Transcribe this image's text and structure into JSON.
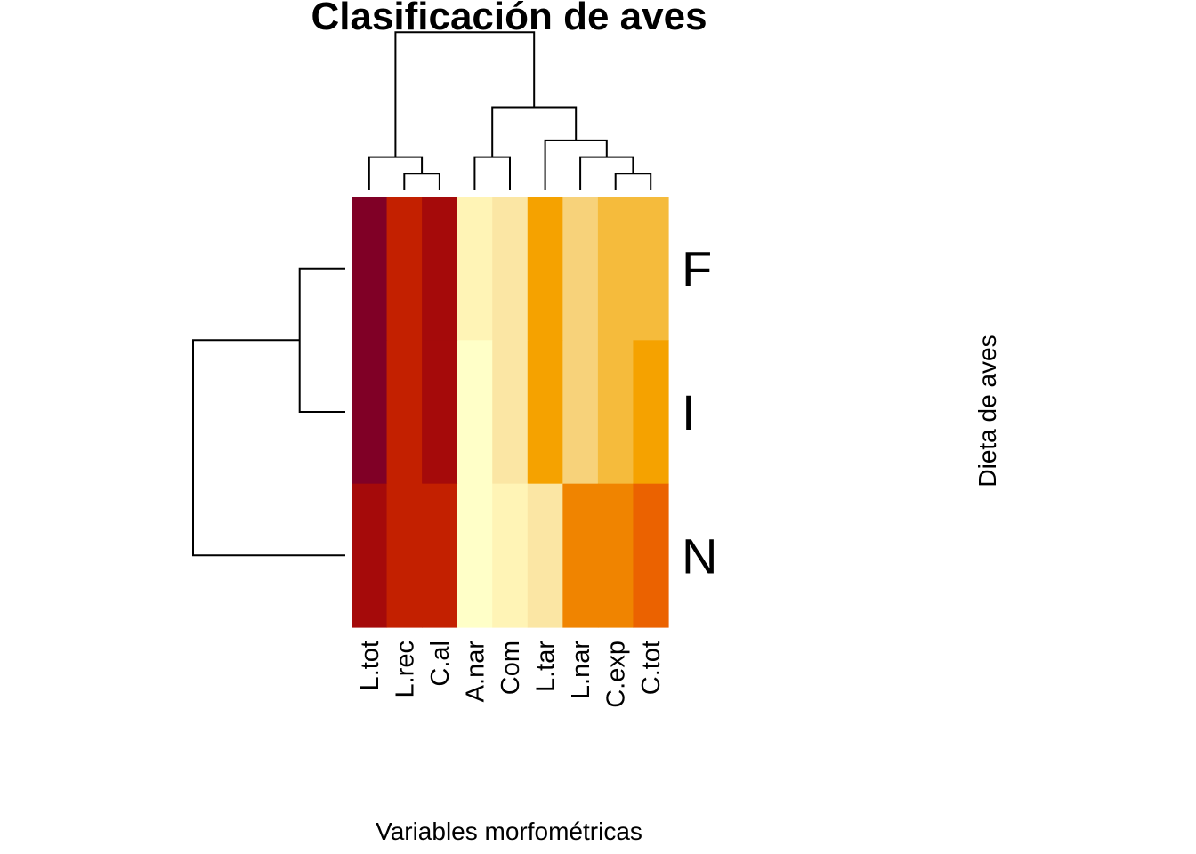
{
  "chart_data": {
    "type": "heatmap",
    "title": "Clasificación de aves",
    "xlabel": "Variables morfométricas",
    "ylabel": "Dieta de aves",
    "columns": [
      "L.tot",
      "L.rec",
      "C.al",
      "A.nar",
      "Com",
      "L.tar",
      "L.nar",
      "C.exp",
      "C.tot"
    ],
    "rows": [
      "F",
      "I",
      "N"
    ],
    "color_scale": [
      "#800026",
      "#A50A0A",
      "#C32000",
      "#EB6200",
      "#F08400",
      "#F5A200",
      "#F5BB3C",
      "#F7D27A",
      "#FBE6A4",
      "#FFF4B6",
      "#FFFFC8"
    ],
    "values": [
      [
        0,
        2,
        1,
        9,
        8,
        5,
        7,
        6,
        6
      ],
      [
        0,
        2,
        1,
        10,
        8,
        5,
        7,
        6,
        5
      ],
      [
        1,
        2,
        2,
        10,
        9,
        8,
        4,
        4,
        3
      ]
    ],
    "column_dendrogram": [
      {
        "left": "L.rec",
        "right": "C.al",
        "height": 1
      },
      {
        "left": "L.tot",
        "right": "(L.rec,C.al)",
        "height": 2
      },
      {
        "left": "A.nar",
        "right": "Com",
        "height": 2
      },
      {
        "left": "C.exp",
        "right": "C.tot",
        "height": 1
      },
      {
        "left": "L.nar",
        "right": "(C.exp,C.tot)",
        "height": 2
      },
      {
        "left": "L.tar",
        "right": "(L.nar,C.exp,C.tot)",
        "height": 3
      },
      {
        "left": "(A.nar,Com)",
        "right": "(L.tar,...,C.tot)",
        "height": 5
      },
      {
        "left": "(L.tot,L.rec,C.al)",
        "right": "(A.nar,...,C.tot)",
        "height": 9.5
      }
    ],
    "row_dendrogram": [
      {
        "left": "F",
        "right": "I",
        "height": 3
      },
      {
        "left": "(F,I)",
        "right": "N",
        "height": 10
      }
    ]
  }
}
